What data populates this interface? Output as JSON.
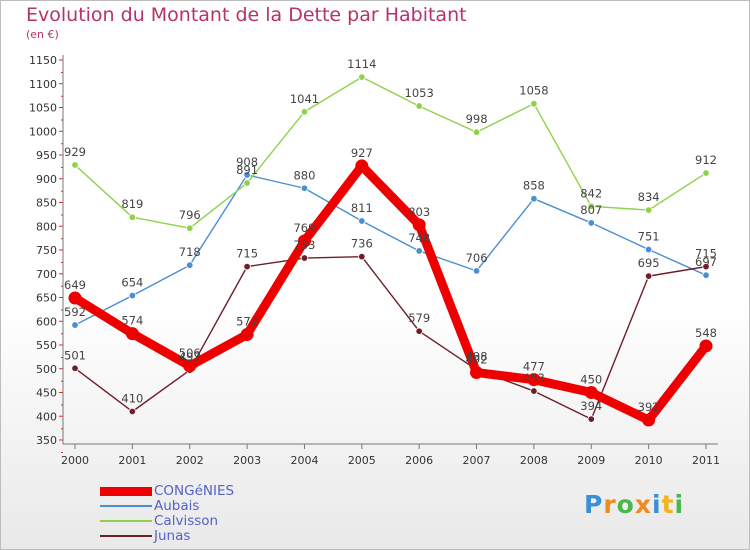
{
  "chart_data": {
    "type": "line",
    "title": "Evolution du Montant de la Dette par Habitant",
    "subtitle": "(en €)",
    "categories": [
      "2000",
      "2001",
      "2002",
      "2003",
      "2004",
      "2005",
      "2006",
      "2007",
      "2008",
      "2009",
      "2010",
      "2011"
    ],
    "ylim": [
      350,
      1150
    ],
    "yticks": [
      350,
      400,
      450,
      500,
      550,
      600,
      650,
      700,
      750,
      800,
      850,
      900,
      950,
      1000,
      1050,
      1100,
      1150
    ],
    "grid": false,
    "legend_position": "bottom-left",
    "series": [
      {
        "name": "Aubais",
        "color": "#4a8fd0",
        "values": [
          592,
          654,
          718,
          908,
          880,
          811,
          748,
          706,
          858,
          807,
          751,
          697
        ],
        "labels": [
          "592",
          "654",
          "718",
          "908",
          "880",
          "811",
          "748",
          "706",
          "858",
          "807",
          "751",
          "697"
        ]
      },
      {
        "name": "Calvisson",
        "color": "#8fd24a",
        "values": [
          929,
          819,
          796,
          891,
          1041,
          1114,
          1053,
          998,
          1058,
          842,
          834,
          912
        ],
        "labels": [
          "929",
          "819",
          "796",
          "891",
          "1041",
          "1114",
          "1053",
          "998",
          "1058",
          "842",
          "834",
          "912"
        ]
      },
      {
        "name": "Junas",
        "color": "#6e1e28",
        "values": [
          501,
          410,
          497,
          715,
          733,
          736,
          579,
          498,
          453,
          394,
          695,
          715
        ],
        "labels": [
          "501",
          "410",
          "497",
          "715",
          "733",
          "736",
          "579",
          "498",
          "453",
          "394",
          "695",
          "715"
        ]
      },
      {
        "name": "CONGéNIES",
        "color": "#ee0000",
        "values": [
          649,
          574,
          506,
          572,
          769,
          927,
          803,
          492,
          477,
          450,
          392,
          548
        ],
        "labels": [
          "649",
          "574",
          "506",
          "572",
          "769",
          "927",
          "803",
          "492",
          "477",
          "450",
          "392",
          "548"
        ]
      }
    ],
    "legend": [
      {
        "name": "CONGéNIES",
        "color": "#ee0000",
        "thick": true
      },
      {
        "name": "Aubais",
        "color": "#4a8fd0",
        "thick": false
      },
      {
        "name": "Calvisson",
        "color": "#8fd24a",
        "thick": false
      },
      {
        "name": "Junas",
        "color": "#6e1e28",
        "thick": false
      }
    ]
  },
  "logo": {
    "letters": [
      "P",
      "r",
      "o",
      "x",
      "i",
      "t",
      "i"
    ],
    "colors": [
      "#3b8fd6",
      "#f08a1c",
      "#49b84a",
      "#f08a1c",
      "#3b8fd6",
      "#f2b31b",
      "#49b84a"
    ]
  }
}
